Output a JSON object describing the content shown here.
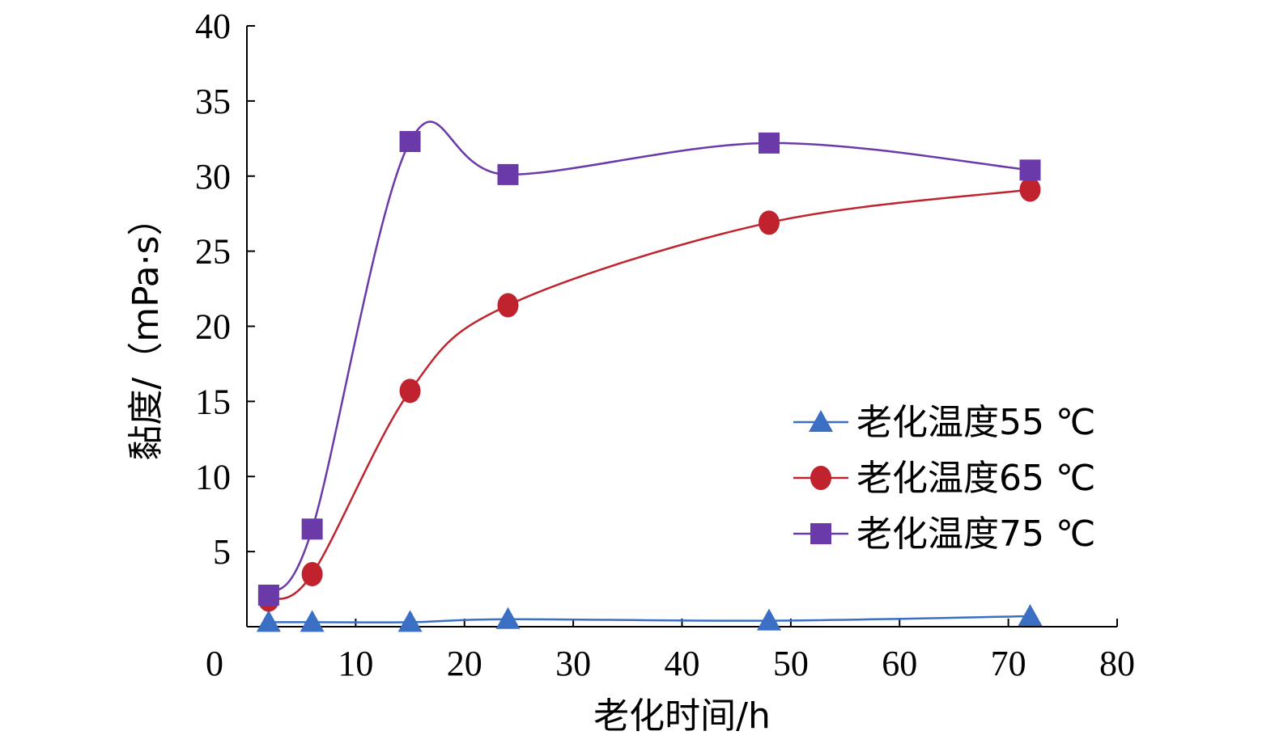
{
  "chart_data": {
    "type": "line",
    "title": "",
    "xlabel": "老化时间/h",
    "ylabel": "黏度/（mPa·s）",
    "xlim": [
      0,
      80
    ],
    "ylim": [
      0,
      40
    ],
    "xticks": [
      0,
      10,
      20,
      30,
      40,
      50,
      60,
      70,
      80
    ],
    "yticks": [
      5,
      10,
      15,
      20,
      25,
      30,
      35,
      40
    ],
    "grid": false,
    "legend_position": "right",
    "series": [
      {
        "name": "老化温度55 ℃",
        "marker": "triangle",
        "color": "#3a6fc4",
        "x": [
          2,
          6,
          15,
          24,
          48,
          72
        ],
        "y": [
          0.3,
          0.3,
          0.3,
          0.5,
          0.4,
          0.7
        ]
      },
      {
        "name": "老化温度65 ℃",
        "marker": "circle",
        "color": "#c0232e",
        "x": [
          2,
          6,
          15,
          24,
          48,
          72
        ],
        "y": [
          1.8,
          3.5,
          15.7,
          21.4,
          26.9,
          29.1
        ]
      },
      {
        "name": "老化温度75 ℃",
        "marker": "square",
        "color": "#6a3aa8",
        "x": [
          2,
          6,
          15,
          24,
          48,
          72
        ],
        "y": [
          2.1,
          6.5,
          32.3,
          30.1,
          32.2,
          30.4
        ]
      }
    ]
  }
}
